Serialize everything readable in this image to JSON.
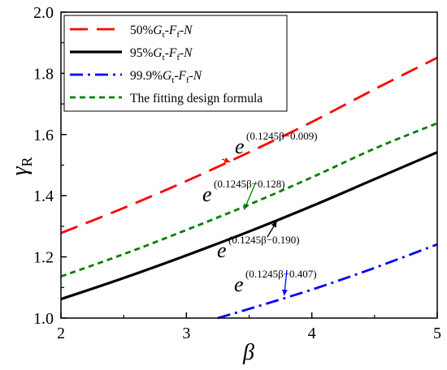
{
  "chart_data": {
    "type": "line",
    "xlabel": "β",
    "ylabel": "γ",
    "ylabel_sub": "R",
    "xlim": [
      2,
      5
    ],
    "ylim": [
      1.0,
      2.0
    ],
    "xticks": [
      2,
      3,
      4,
      5
    ],
    "yticks": [
      1.0,
      1.2,
      1.4,
      1.6,
      1.8,
      2.0
    ],
    "x_tick_labels": [
      "2",
      "3",
      "4",
      "5"
    ],
    "y_tick_labels": [
      "1.0",
      "1.2",
      "1.4",
      "1.6",
      "1.8",
      "2.0"
    ],
    "grid": false,
    "legend_position": "top-left",
    "series": [
      {
        "name": "50%Gt-Ff-N",
        "legend_parts": [
          "50%",
          "G",
          "t",
          "-",
          "F",
          "f",
          "-",
          "N"
        ],
        "color": "#ff0000",
        "style": "dash",
        "x": [
          2.0,
          2.5,
          3.0,
          3.5,
          4.0,
          4.5,
          5.0
        ],
        "y": [
          1.278,
          1.36,
          1.448,
          1.542,
          1.641,
          1.748,
          1.851
        ]
      },
      {
        "name": "95%Gt-Ff-N",
        "legend_parts": [
          "95%",
          "G",
          "t",
          "-",
          "F",
          "f",
          "-",
          "N"
        ],
        "color": "#000000",
        "style": "solid",
        "x": [
          2.0,
          2.5,
          3.0,
          3.5,
          4.0,
          4.5,
          5.0
        ],
        "y": [
          1.062,
          1.131,
          1.205,
          1.283,
          1.366,
          1.454,
          1.542
        ]
      },
      {
        "name": "99.9%Gt-Ff-N",
        "legend_parts": [
          "99.9%",
          "G",
          "t",
          "-",
          "F",
          "f",
          "-",
          "N"
        ],
        "color": "#0000ff",
        "style": "dashdot",
        "x": [
          3.25,
          3.5,
          4.0,
          4.5,
          5.0
        ],
        "y": [
          1.0,
          1.03,
          1.093,
          1.164,
          1.241
        ]
      },
      {
        "name": "The fitting design formula",
        "legend_parts": [
          "The fitting design formula"
        ],
        "color": "#008000",
        "style": "shortdash",
        "x": [
          2.0,
          2.5,
          3.0,
          3.5,
          4.0,
          4.5,
          5.0
        ],
        "y": [
          1.136,
          1.209,
          1.288,
          1.371,
          1.46,
          1.554,
          1.637
        ]
      }
    ],
    "annotations": [
      {
        "e": "e",
        "exponent": "(0.1245β−0.009)",
        "color": "#ff0000",
        "point": [
          3.35,
          1.51
        ]
      },
      {
        "e": "e",
        "exponent": "(0.1245β−0.128)",
        "color": "#008000",
        "point": [
          3.46,
          1.354
        ]
      },
      {
        "e": "e",
        "exponent": "(0.1245β−0.190)",
        "color": "#000000",
        "point": [
          3.72,
          1.316
        ]
      },
      {
        "e": "e",
        "exponent": "(0.1245β−0.407)",
        "color": "#0000ff",
        "point": [
          3.78,
          1.074
        ]
      }
    ]
  }
}
